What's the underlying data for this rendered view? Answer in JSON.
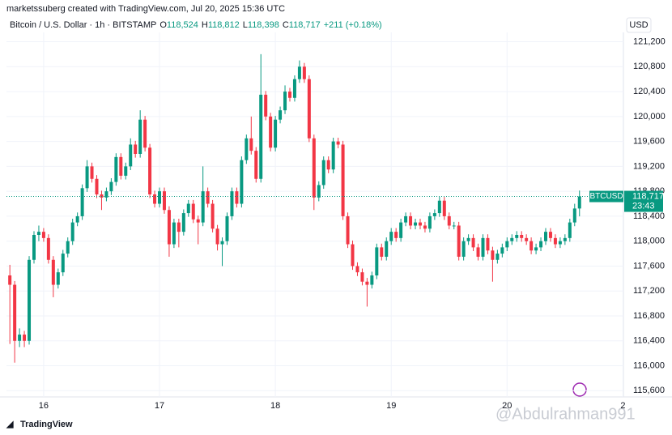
{
  "header": {
    "credit": "marketssuberg created with TradingView.com, Jul 20, 2025 15:36 UTC",
    "symbol": "Bitcoin / U.S. Dollar · 1h · BITSTAMP",
    "ohlc": [
      {
        "key": "O",
        "value": "118,524"
      },
      {
        "key": "H",
        "value": "118,812"
      },
      {
        "key": "L",
        "value": "118,398"
      },
      {
        "key": "C",
        "value": "118,717"
      }
    ],
    "change": "+211 (+0.18%)"
  },
  "currency": "USD",
  "price_label": {
    "symbol": "BTCUSD",
    "price": "118,717",
    "countdown": "23:43"
  },
  "footer": "TradingView",
  "watermark": "@Abdulrahman991",
  "chart_data": {
    "type": "candlestick",
    "up_color": "#089981",
    "down_color": "#f23645",
    "grid": true,
    "open": [
      117450,
      117300,
      116400,
      116500,
      116400,
      117700,
      118100,
      118150,
      118050,
      117700,
      117300,
      117500,
      117800,
      118000,
      118300,
      118400,
      118850,
      119200,
      119000,
      118750,
      118700,
      118800,
      118950,
      119350,
      119050,
      119200,
      119550,
      119400,
      119950,
      119500,
      118750,
      118600,
      118800,
      118500,
      117950,
      118300,
      118150,
      118450,
      118600,
      118350,
      118300,
      118800,
      118600,
      118200,
      117950,
      118000,
      118400,
      118800,
      118600,
      119300,
      119650,
      119450,
      119000,
      120350,
      120000,
      119500,
      119950,
      120100,
      120400,
      120300,
      120600,
      120800,
      120600,
      119650,
      118700,
      118900,
      119300,
      119150,
      119600,
      119550,
      118400,
      117950,
      117600,
      117500,
      117350,
      117300,
      117450,
      117900,
      117750,
      118000,
      118150,
      118050,
      118300,
      118400,
      118250,
      118300,
      118250,
      118200,
      118400,
      118450,
      118650,
      118400,
      118250,
      118250,
      117750,
      118000,
      118050,
      117900,
      117750,
      118050,
      117850,
      117700,
      117800,
      117900,
      118000,
      118050,
      118100,
      118050,
      118000,
      117850,
      117900,
      118000,
      118150,
      118050,
      117950,
      118000,
      118050,
      118300,
      118524
    ],
    "high": [
      117620,
      117360,
      116600,
      116560,
      117760,
      118160,
      118250,
      118210,
      118110,
      117760,
      117560,
      117860,
      118060,
      118360,
      118460,
      118910,
      119300,
      119260,
      119060,
      118810,
      118860,
      119010,
      119410,
      119410,
      119260,
      119650,
      119610,
      120100,
      120010,
      119560,
      118810,
      118860,
      118860,
      118560,
      118360,
      118360,
      118510,
      118660,
      118660,
      118410,
      119200,
      118860,
      118660,
      118260,
      118060,
      118460,
      118860,
      118860,
      119360,
      119710,
      120000,
      119510,
      121000,
      120410,
      120060,
      120010,
      120160,
      120500,
      120460,
      120660,
      120900,
      120860,
      120660,
      119710,
      118960,
      119360,
      119360,
      119660,
      119660,
      119610,
      118460,
      118010,
      117660,
      117560,
      117410,
      117510,
      117960,
      117960,
      118060,
      118210,
      118210,
      118360,
      118460,
      118460,
      118360,
      118360,
      118310,
      118460,
      118510,
      118710,
      118710,
      118460,
      118310,
      118310,
      118060,
      118110,
      118110,
      117960,
      118110,
      118110,
      117910,
      117860,
      117960,
      118060,
      118110,
      118160,
      118160,
      118110,
      118060,
      117960,
      118060,
      118210,
      118210,
      118110,
      118060,
      118110,
      118360,
      118600,
      118812
    ],
    "low": [
      116350,
      116050,
      116300,
      116300,
      116340,
      117640,
      118000,
      117990,
      117640,
      117100,
      117240,
      117440,
      117740,
      117940,
      118240,
      118340,
      118790,
      118940,
      118690,
      118500,
      118640,
      118740,
      118890,
      118990,
      118990,
      119140,
      119340,
      119340,
      119440,
      118690,
      118540,
      118540,
      118440,
      117750,
      117890,
      117900,
      118090,
      118390,
      118290,
      117950,
      118240,
      118540,
      118140,
      117850,
      117600,
      117940,
      118340,
      118540,
      118540,
      119240,
      119390,
      118940,
      118940,
      119940,
      119440,
      119440,
      119890,
      120040,
      120240,
      120240,
      120540,
      120540,
      119590,
      118500,
      118640,
      118840,
      119090,
      119090,
      119490,
      118340,
      117890,
      117540,
      117440,
      117290,
      116950,
      117240,
      117390,
      117690,
      117690,
      117940,
      117990,
      117990,
      118240,
      118190,
      118190,
      118190,
      118140,
      118140,
      118340,
      118390,
      118340,
      118190,
      118190,
      117690,
      117690,
      117940,
      117840,
      117690,
      117690,
      117790,
      117350,
      117640,
      117740,
      117840,
      117940,
      117990,
      117990,
      117940,
      117790,
      117790,
      117840,
      117940,
      117990,
      117890,
      117890,
      117940,
      117990,
      118240,
      118398
    ],
    "close": [
      117300,
      116400,
      116500,
      116400,
      117700,
      118100,
      118150,
      118050,
      117700,
      117300,
      117500,
      117800,
      118000,
      118300,
      118400,
      118850,
      119200,
      119000,
      118750,
      118700,
      118800,
      118950,
      119350,
      119050,
      119200,
      119550,
      119400,
      119950,
      119500,
      118750,
      118600,
      118800,
      118500,
      117950,
      118300,
      118150,
      118450,
      118600,
      118350,
      118300,
      118800,
      118600,
      118200,
      117950,
      118000,
      118400,
      118800,
      118600,
      119300,
      119650,
      119450,
      119000,
      120350,
      120000,
      119500,
      119950,
      120100,
      120400,
      120300,
      120600,
      120800,
      120600,
      119650,
      118700,
      118900,
      119300,
      119150,
      119600,
      119550,
      118400,
      117950,
      117600,
      117500,
      117350,
      117300,
      117450,
      117900,
      117750,
      118000,
      118150,
      118050,
      118300,
      118400,
      118250,
      118300,
      118250,
      118200,
      118400,
      118450,
      118650,
      118400,
      118250,
      118250,
      117750,
      118000,
      118050,
      117900,
      117750,
      118050,
      117850,
      117700,
      117800,
      117900,
      118000,
      118050,
      118100,
      118050,
      118000,
      117850,
      117900,
      118000,
      118150,
      118050,
      117950,
      118000,
      118050,
      118300,
      118524,
      118717
    ],
    "xlim": [
      -0.7,
      127.1
    ],
    "xticks": [
      {
        "value": 7,
        "label": "16"
      },
      {
        "value": 31,
        "label": "17"
      },
      {
        "value": 55,
        "label": "18"
      },
      {
        "value": 79,
        "label": "19"
      },
      {
        "value": 103,
        "label": "20"
      },
      {
        "value": 127,
        "label": "2"
      }
    ],
    "ylim": [
      115500,
      121350
    ],
    "yticks": [
      {
        "value": 115600,
        "label": "115,600"
      },
      {
        "value": 116000,
        "label": "116,000"
      },
      {
        "value": 116400,
        "label": "116,400"
      },
      {
        "value": 116800,
        "label": "116,800"
      },
      {
        "value": 117200,
        "label": "117,200"
      },
      {
        "value": 117600,
        "label": "117,600"
      },
      {
        "value": 118000,
        "label": "118,000"
      },
      {
        "value": 118400,
        "label": "118,400"
      },
      {
        "value": 118800,
        "label": "118,800"
      },
      {
        "value": 119200,
        "label": "119,200"
      },
      {
        "value": 119600,
        "label": "119,600"
      },
      {
        "value": 120000,
        "label": "120,000"
      },
      {
        "value": 120400,
        "label": "120,400"
      },
      {
        "value": 120800,
        "label": "120,800"
      },
      {
        "value": 121200,
        "label": "121,200"
      }
    ]
  }
}
